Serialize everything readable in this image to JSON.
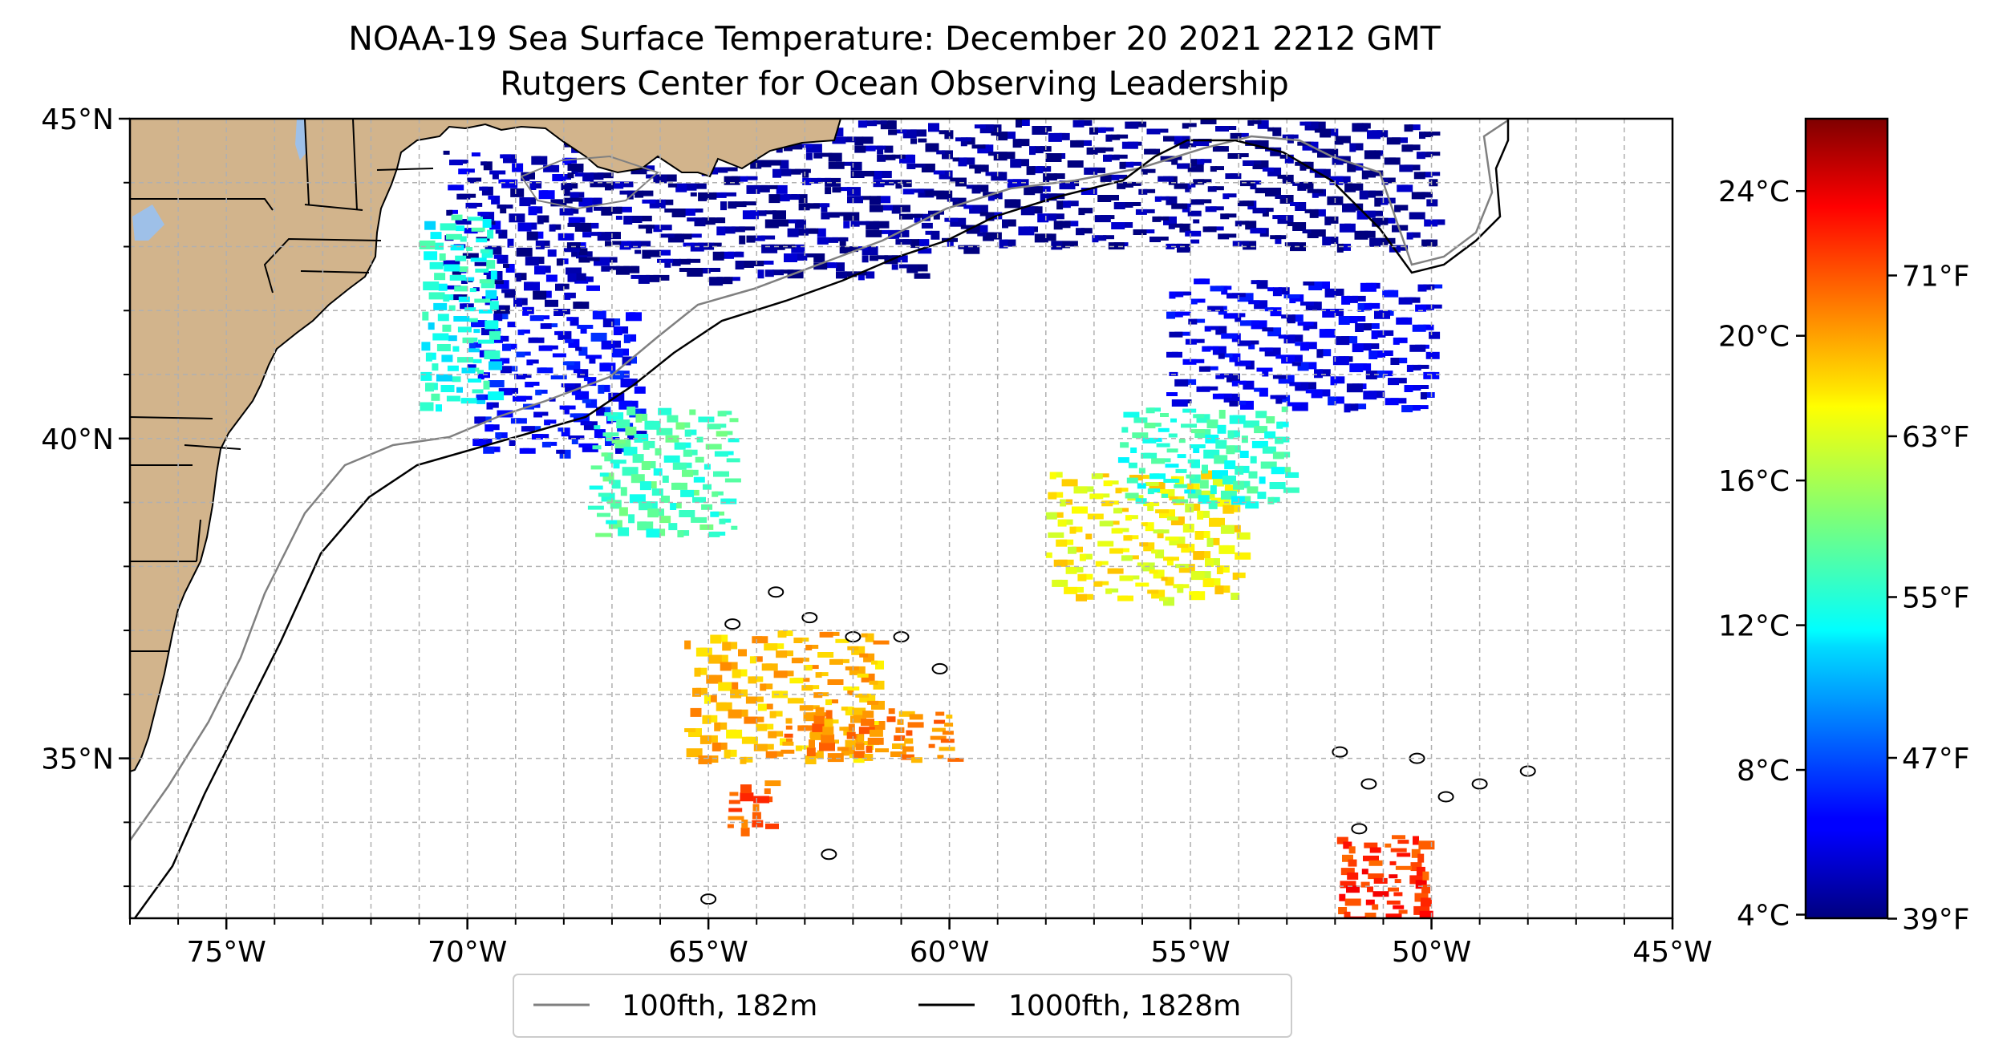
{
  "title": {
    "line1": "NOAA-19 Sea Surface Temperature: December 20 2021 2212 GMT",
    "line2": "Rutgers Center for Ocean Observing Leadership"
  },
  "map": {
    "lon_range": [
      -77,
      -45
    ],
    "lat_range": [
      32.5,
      45
    ],
    "lon_ticks": [
      {
        "value": -75,
        "label": "75°W"
      },
      {
        "value": -70,
        "label": "70°W"
      },
      {
        "value": -65,
        "label": "65°W"
      },
      {
        "value": -60,
        "label": "60°W"
      },
      {
        "value": -55,
        "label": "55°W"
      },
      {
        "value": -50,
        "label": "50°W"
      },
      {
        "value": -45,
        "label": "45°W"
      }
    ],
    "lat_ticks": [
      {
        "value": 45,
        "label": "45°N"
      },
      {
        "value": 40,
        "label": "40°N"
      },
      {
        "value": 35,
        "label": "35°N"
      }
    ],
    "grid": true,
    "land_color": "#d2b48c",
    "lake_color": "#9ec0e8",
    "ocean_color": "#ffffff"
  },
  "legend": {
    "placement": "bottom-center",
    "items": [
      {
        "label": "100fth, 182m",
        "color": "#808080"
      },
      {
        "label": "1000fth, 1828m",
        "color": "#000000"
      }
    ]
  },
  "colorbar": {
    "colormap": "jet",
    "celsius_ticks": [
      {
        "value": 4,
        "label": "4°C"
      },
      {
        "value": 8,
        "label": "8°C"
      },
      {
        "value": 12,
        "label": "12°C"
      },
      {
        "value": 16,
        "label": "16°C"
      },
      {
        "value": 20,
        "label": "20°C"
      },
      {
        "value": 24,
        "label": "24°C"
      }
    ],
    "fahrenheit_ticks": [
      {
        "value": 39,
        "label": "39°F"
      },
      {
        "value": 47,
        "label": "47°F"
      },
      {
        "value": 55,
        "label": "55°F"
      },
      {
        "value": 63,
        "label": "63°F"
      },
      {
        "value": 71,
        "label": "71°F"
      }
    ],
    "range_c": [
      3.9,
      26
    ]
  }
}
